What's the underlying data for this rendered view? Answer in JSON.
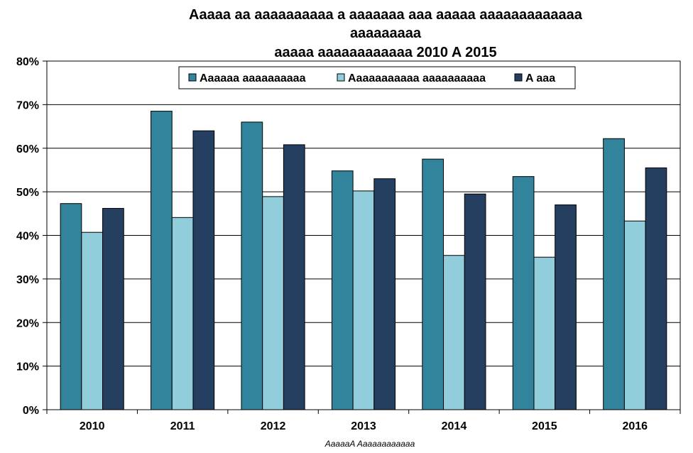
{
  "chart_data": {
    "type": "bar",
    "title_lines": [
      "Aaaaa aa aaaaaaaaaa a aaaaaaa aaa aaaaa aaaaaaaaaaaaa",
      "aaaaaaaaa",
      "aaaaa aaaaaaaaaaaa 2010 A 2015"
    ],
    "categories": [
      "2010",
      "2011",
      "2012",
      "2013",
      "2014",
      "2015",
      "2016"
    ],
    "series": [
      {
        "name": "Aaaaaa aaaaaaaaaa",
        "color": "#31849B",
        "values": [
          47.3,
          68.5,
          66.0,
          54.8,
          57.5,
          53.5,
          62.2
        ]
      },
      {
        "name": "Aaaaaaaaaaa aaaaaaaaaa",
        "color": "#92CDDC",
        "values": [
          40.7,
          44.1,
          48.9,
          50.2,
          35.4,
          35.0,
          43.3
        ]
      },
      {
        "name": "A aaa",
        "color": "#243F60",
        "values": [
          46.2,
          64.0,
          60.8,
          53.0,
          49.5,
          47.0,
          55.5
        ]
      }
    ],
    "y_ticks": [
      "0%",
      "10%",
      "20%",
      "30%",
      "40%",
      "50%",
      "60%",
      "70%",
      "80%"
    ],
    "ylim": [
      0,
      80
    ],
    "grid": true,
    "legend_position": "top-center",
    "source_note": "AaaaaA Aaaaaaaaaaaa"
  }
}
